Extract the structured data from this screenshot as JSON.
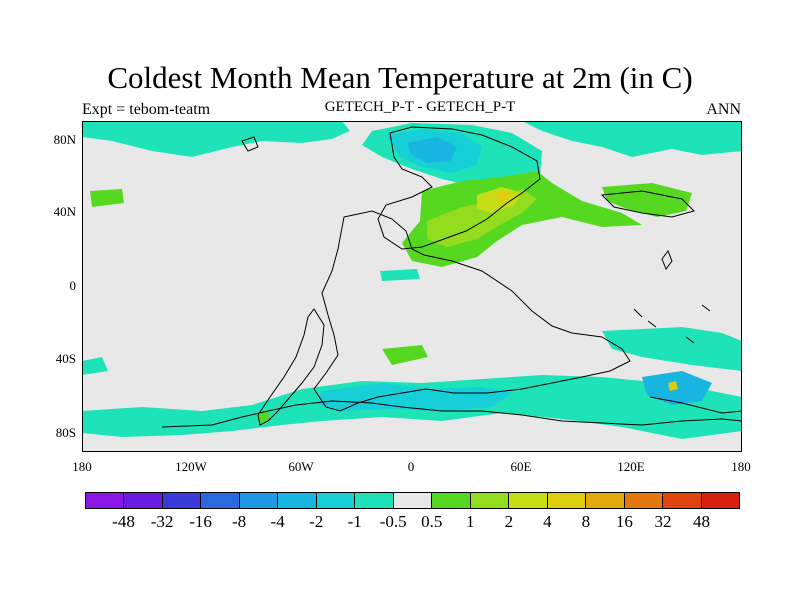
{
  "title": "Coldest Month Mean Temperature at 2m (in C)",
  "experiment": "Expt = tebom-teatm",
  "comparison": "GETECH_P-T - GETECH_P-T",
  "period": "ANN",
  "y_ticks": [
    "80N",
    "40N",
    "0",
    "40S",
    "80S"
  ],
  "x_ticks": [
    "180",
    "120W",
    "60W",
    "0",
    "60E",
    "120E",
    "180"
  ],
  "colorbar": {
    "colors": [
      "#8a17e6",
      "#6a1be0",
      "#3a3ad8",
      "#2a68e0",
      "#1f98e6",
      "#17b5df",
      "#17cfd6",
      "#1ee3b8",
      "#e8e8e8",
      "#56d820",
      "#93dc1e",
      "#c6dd16",
      "#dccd0f",
      "#e4a80f",
      "#e4780f",
      "#e0450f",
      "#da200e"
    ],
    "labels": [
      "-48",
      "-32",
      "-16",
      "-8",
      "-4",
      "-2",
      "-1",
      "-0.5",
      "0.5",
      "1",
      "2",
      "4",
      "8",
      "16",
      "32",
      "48"
    ]
  },
  "colors": {
    "background_field": "#e8e8e8",
    "teal": "#1ee3b8",
    "cyan": "#17cfd6",
    "sky": "#17b5df",
    "green": "#56d820",
    "lime": "#93dc1e",
    "yellow": "#c6dd16",
    "gold": "#dccd0f"
  }
}
